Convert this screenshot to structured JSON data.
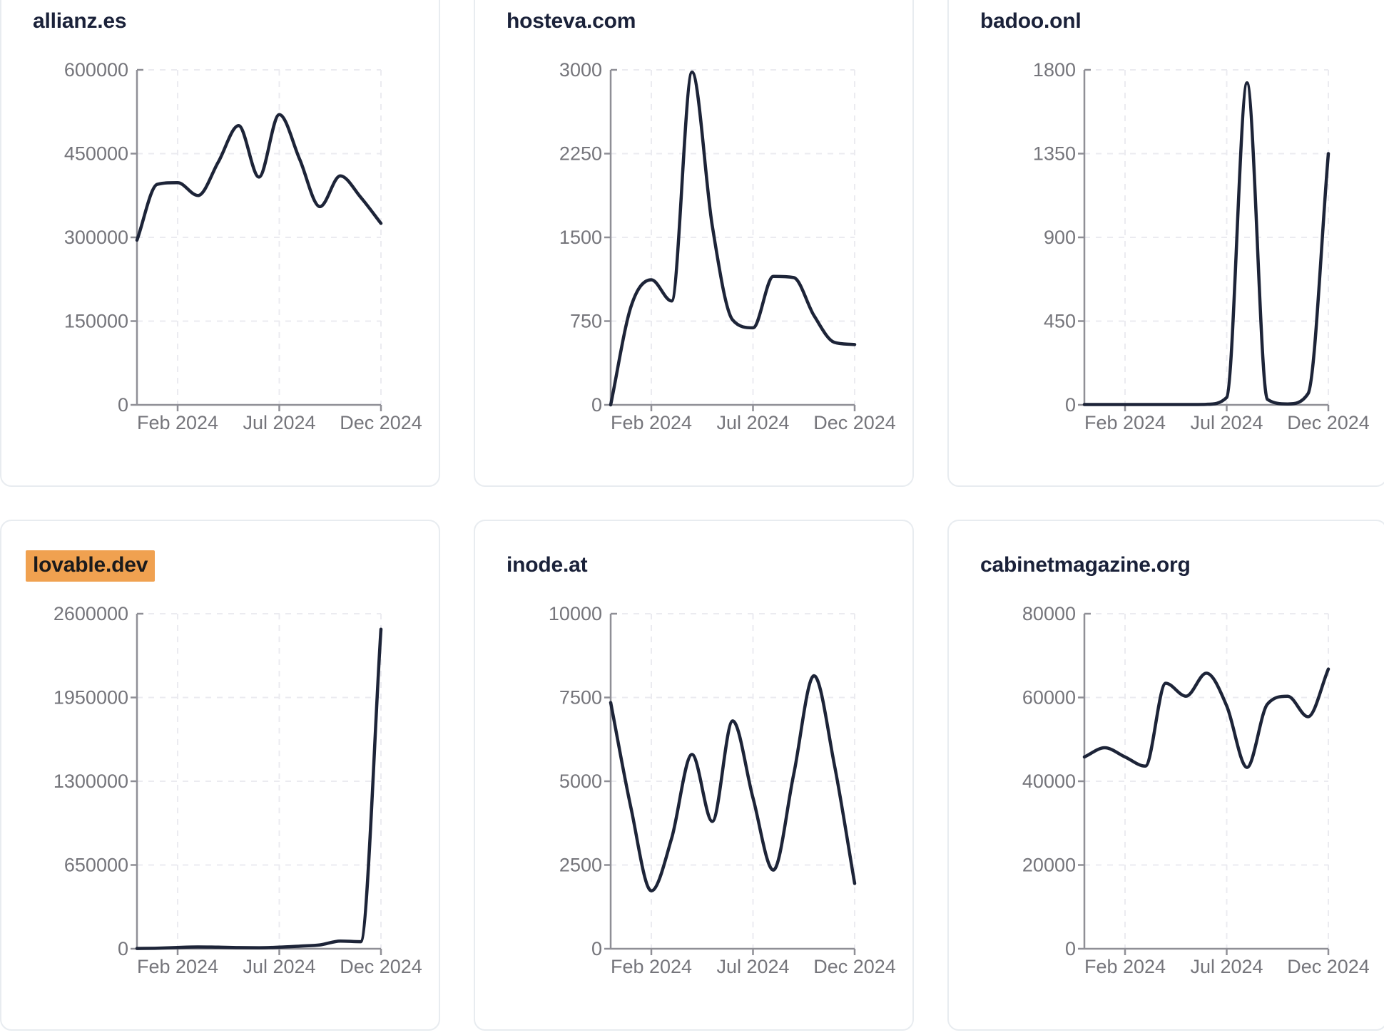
{
  "colors": {
    "line": "#1d2438",
    "title": "#1a2139",
    "highlight_bg": "#f0a150",
    "highlight_text": "#1a1a1c",
    "tick_label": "#75757b",
    "axis": "#8f8f96",
    "grid": "#ebebf0",
    "card_border": "#e8ecf0",
    "card_bg": "#ffffff"
  },
  "x_axis_ticks": [
    "Feb 2024",
    "Jul 2024",
    "Dec 2024"
  ],
  "chart_data": [
    {
      "type": "line",
      "title": "allianz.es",
      "highlighted": false,
      "ylim": [
        0,
        600000
      ],
      "y_tick_labels": [
        "600000",
        "450000",
        "300000",
        "150000",
        "0"
      ],
      "x_tick_labels": [
        "Feb 2024",
        "Jul 2024",
        "Dec 2024"
      ],
      "x": [
        "Dec 2023",
        "Jan 2024",
        "Feb 2024",
        "Mar 2024",
        "Apr 2024",
        "May 2024",
        "Jun 2024",
        "Jul 2024",
        "Aug 2024",
        "Sep 2024",
        "Oct 2024",
        "Nov 2024",
        "Dec 2024"
      ],
      "values": [
        295000,
        395000,
        398000,
        375000,
        435000,
        500000,
        408000,
        520000,
        440000,
        355000,
        410000,
        372000,
        325000
      ]
    },
    {
      "type": "line",
      "title": "hosteva.com",
      "highlighted": false,
      "ylim": [
        0,
        3000
      ],
      "y_tick_labels": [
        "3000",
        "2250",
        "1500",
        "750",
        "0"
      ],
      "x_tick_labels": [
        "Feb 2024",
        "Jul 2024",
        "Dec 2024"
      ],
      "x": [
        "Dec 2023",
        "Jan 2024",
        "Feb 2024",
        "Mar 2024",
        "Apr 2024",
        "May 2024",
        "Jun 2024",
        "Jul 2024",
        "Aug 2024",
        "Sep 2024",
        "Oct 2024",
        "Nov 2024",
        "Dec 2024"
      ],
      "values": [
        0,
        880,
        1120,
        930,
        2980,
        1600,
        760,
        690,
        1150,
        1140,
        800,
        560,
        540
      ]
    },
    {
      "type": "line",
      "title": "badoo.onl",
      "highlighted": false,
      "ylim": [
        0,
        1800
      ],
      "y_tick_labels": [
        "1800",
        "1350",
        "900",
        "450",
        "0"
      ],
      "x_tick_labels": [
        "Feb 2024",
        "Jul 2024",
        "Dec 2024"
      ],
      "x": [
        "Dec 2023",
        "Jan 2024",
        "Feb 2024",
        "Mar 2024",
        "Apr 2024",
        "May 2024",
        "Jun 2024",
        "Jul 2024",
        "Aug 2024",
        "Sep 2024",
        "Oct 2024",
        "Nov 2024",
        "Dec 2024"
      ],
      "values": [
        2,
        2,
        2,
        2,
        2,
        2,
        3,
        40,
        1730,
        30,
        5,
        60,
        1350
      ]
    },
    {
      "type": "line",
      "title": "lovable.dev",
      "highlighted": true,
      "ylim": [
        0,
        2600000
      ],
      "y_tick_labels": [
        "2600000",
        "1950000",
        "1300000",
        "650000",
        "0"
      ],
      "x_tick_labels": [
        "Feb 2024",
        "Jul 2024",
        "Dec 2024"
      ],
      "x": [
        "Dec 2023",
        "Jan 2024",
        "Feb 2024",
        "Mar 2024",
        "Apr 2024",
        "May 2024",
        "Jun 2024",
        "Jul 2024",
        "Aug 2024",
        "Sep 2024",
        "Oct 2024",
        "Nov 2024",
        "Dec 2024"
      ],
      "values": [
        2000,
        4000,
        10000,
        14000,
        12000,
        9000,
        8000,
        12000,
        20000,
        30000,
        60000,
        55000,
        2480000
      ]
    },
    {
      "type": "line",
      "title": "inode.at",
      "highlighted": false,
      "ylim": [
        0,
        10000
      ],
      "y_tick_labels": [
        "10000",
        "7500",
        "5000",
        "2500",
        "0"
      ],
      "x_tick_labels": [
        "Feb 2024",
        "Jul 2024",
        "Dec 2024"
      ],
      "x": [
        "Dec 2023",
        "Jan 2024",
        "Feb 2024",
        "Mar 2024",
        "Apr 2024",
        "May 2024",
        "Jun 2024",
        "Jul 2024",
        "Aug 2024",
        "Sep 2024",
        "Oct 2024",
        "Nov 2024",
        "Dec 2024"
      ],
      "values": [
        7350,
        4200,
        1730,
        3300,
        5800,
        3800,
        6800,
        4500,
        2350,
        5200,
        8150,
        5500,
        1950
      ]
    },
    {
      "type": "line",
      "title": "cabinetmagazine.org",
      "highlighted": false,
      "ylim": [
        0,
        80000
      ],
      "y_tick_labels": [
        "80000",
        "60000",
        "40000",
        "20000",
        "0"
      ],
      "x_tick_labels": [
        "Feb 2024",
        "Jul 2024",
        "Dec 2024"
      ],
      "x": [
        "Dec 2023",
        "Jan 2024",
        "Feb 2024",
        "Mar 2024",
        "Apr 2024",
        "May 2024",
        "Jun 2024",
        "Jul 2024",
        "Aug 2024",
        "Sep 2024",
        "Oct 2024",
        "Nov 2024",
        "Dec 2024"
      ],
      "values": [
        45800,
        48000,
        45800,
        43600,
        63400,
        60300,
        65800,
        58000,
        43300,
        58400,
        60300,
        55400,
        66800
      ]
    }
  ]
}
